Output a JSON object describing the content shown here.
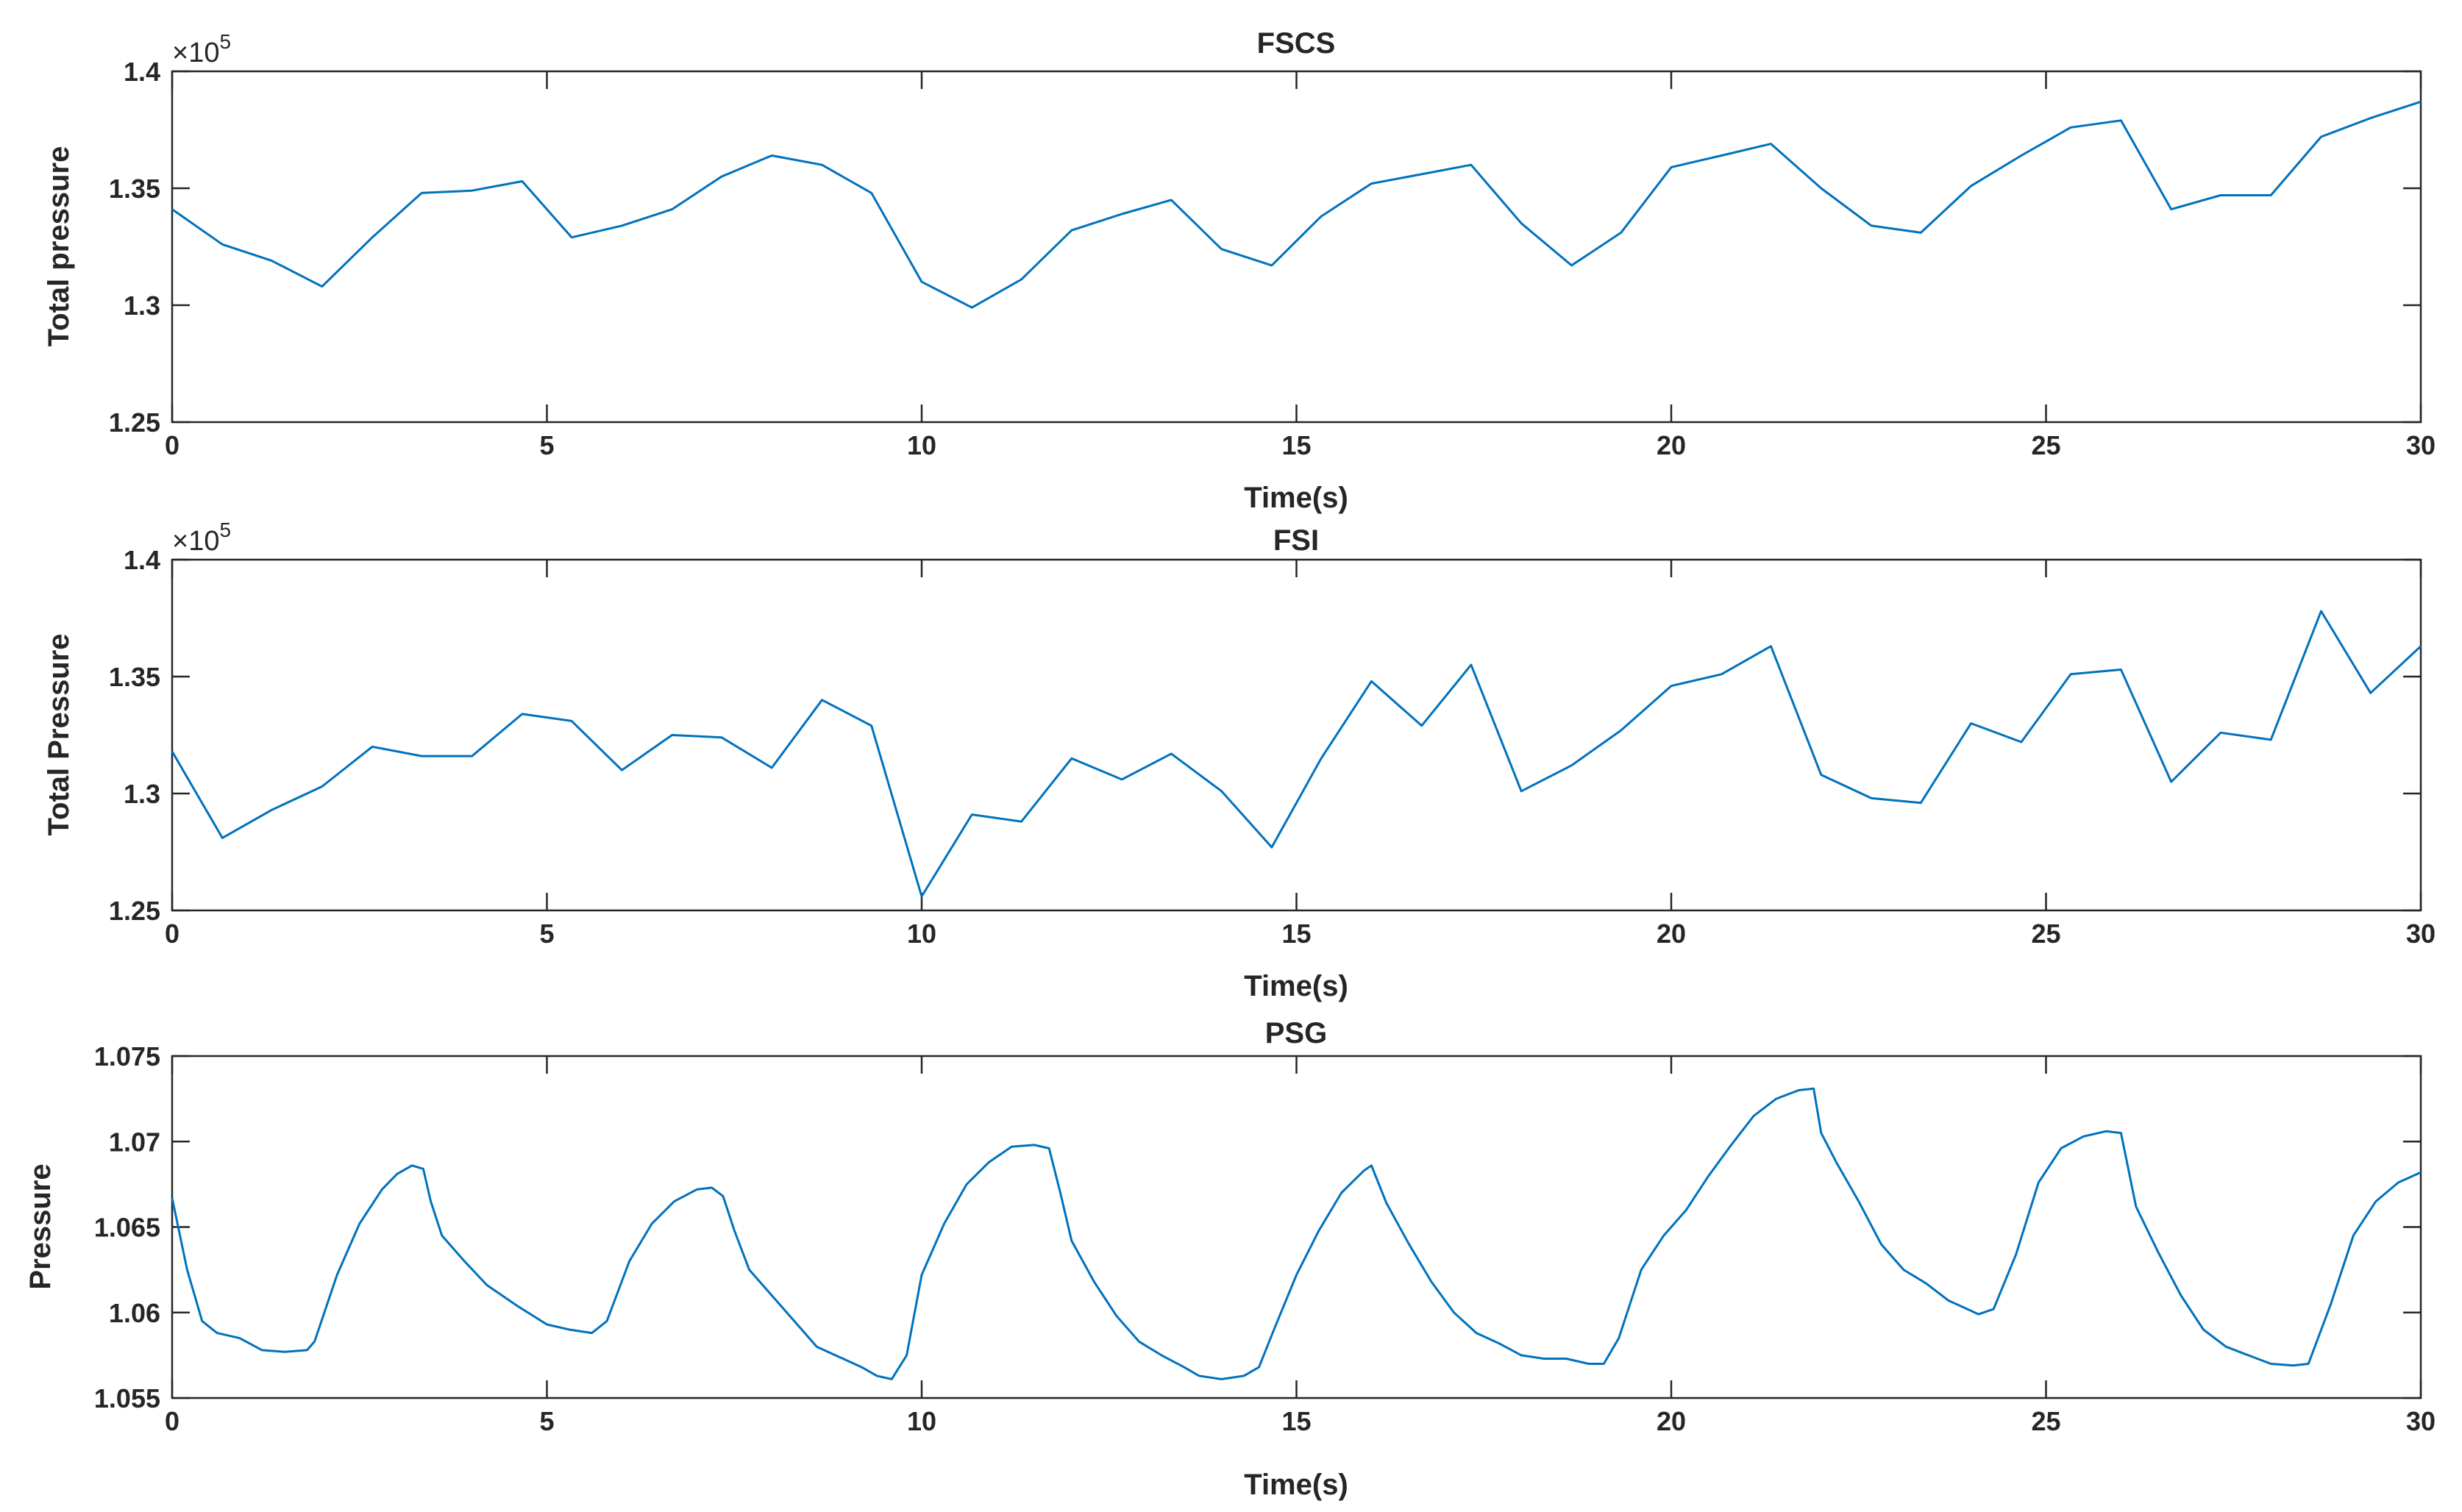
{
  "chart_data": [
    {
      "type": "line",
      "title": "FSCS",
      "xlabel": "Time(s)",
      "ylabel": "Total pressure",
      "y_exponent_base": "×10",
      "y_exponent_power": "5",
      "xlim": [
        0,
        30
      ],
      "ylim": [
        125000,
        140000
      ],
      "xticks": [
        0,
        5,
        10,
        15,
        20,
        25,
        30
      ],
      "xtick_labels": [
        "0",
        "5",
        "10",
        "15",
        "20",
        "25",
        "30"
      ],
      "yticks": [
        125000,
        130000,
        135000,
        140000
      ],
      "ytick_labels": [
        "1.25",
        "1.3",
        "1.35",
        "1.4"
      ],
      "grid": false,
      "series": [
        {
          "color": "#0072bd",
          "x": [
            0,
            0.67,
            1.33,
            2.0,
            2.67,
            3.33,
            4.0,
            4.67,
            5.33,
            6.0,
            6.67,
            7.33,
            8.0,
            8.67,
            9.33,
            10.0,
            10.67,
            11.33,
            12.0,
            12.67,
            13.33,
            14.0,
            14.67,
            15.33,
            16.0,
            16.67,
            17.33,
            18.0,
            18.67,
            19.33,
            20.0,
            20.67,
            21.33,
            22.0,
            22.67,
            23.33,
            24.0,
            24.67,
            25.33,
            26.0,
            26.67,
            27.33,
            28.0,
            28.67,
            29.33,
            30.0
          ],
          "y": [
            134100,
            132600,
            131900,
            130800,
            132900,
            134800,
            134900,
            135300,
            132900,
            133400,
            134100,
            135500,
            136400,
            136000,
            134800,
            131000,
            129900,
            131100,
            133200,
            133900,
            134500,
            132400,
            131700,
            133800,
            135200,
            135600,
            136000,
            133500,
            131700,
            133100,
            135900,
            136400,
            136900,
            135000,
            133400,
            133100,
            135100,
            136400,
            137600,
            137900,
            134100,
            134700,
            134700,
            137200,
            138000,
            138700
          ]
        }
      ]
    },
    {
      "type": "line",
      "title": "FSI",
      "xlabel": "Time(s)",
      "ylabel": "Total Pressure",
      "y_exponent_base": "×10",
      "y_exponent_power": "5",
      "xlim": [
        0,
        30
      ],
      "ylim": [
        125000,
        140000
      ],
      "xticks": [
        0,
        5,
        10,
        15,
        20,
        25,
        30
      ],
      "xtick_labels": [
        "0",
        "5",
        "10",
        "15",
        "20",
        "25",
        "30"
      ],
      "yticks": [
        125000,
        130000,
        135000,
        140000
      ],
      "ytick_labels": [
        "1.25",
        "1.3",
        "1.35",
        "1.4"
      ],
      "grid": false,
      "series": [
        {
          "color": "#0072bd",
          "x": [
            0,
            0.67,
            1.33,
            2.0,
            2.67,
            3.33,
            4.0,
            4.67,
            5.33,
            6.0,
            6.67,
            7.33,
            8.0,
            8.67,
            9.33,
            10.0,
            10.67,
            11.33,
            12.0,
            12.67,
            13.33,
            14.0,
            14.67,
            15.33,
            16.0,
            16.67,
            17.33,
            18.0,
            18.67,
            19.33,
            20.0,
            20.67,
            21.33,
            22.0,
            22.67,
            23.33,
            24.0,
            24.67,
            25.33,
            26.0,
            26.67,
            27.33,
            28.0,
            28.67,
            29.33,
            30.0
          ],
          "y": [
            131800,
            128100,
            129300,
            130300,
            132000,
            131600,
            131600,
            133400,
            133100,
            131000,
            132500,
            132400,
            131100,
            134000,
            132900,
            125600,
            129100,
            128800,
            131500,
            130600,
            131700,
            130100,
            127700,
            131500,
            134800,
            132900,
            135500,
            130100,
            131200,
            132700,
            134600,
            135100,
            136300,
            130800,
            129800,
            129600,
            133000,
            132200,
            135100,
            135300,
            130500,
            132600,
            132300,
            137800,
            134300,
            136300
          ]
        }
      ]
    },
    {
      "type": "line",
      "title": "PSG",
      "xlabel": "Time(s)",
      "ylabel": "Pressure",
      "xlim": [
        0,
        30
      ],
      "ylim": [
        1.055,
        1.075
      ],
      "xticks": [
        0,
        5,
        10,
        15,
        20,
        25,
        30
      ],
      "xtick_labels": [
        "0",
        "5",
        "10",
        "15",
        "20",
        "25",
        "30"
      ],
      "yticks": [
        1.055,
        1.06,
        1.065,
        1.07,
        1.075
      ],
      "ytick_labels": [
        "1.055",
        "1.06",
        "1.065",
        "1.07",
        "1.075"
      ],
      "grid": false,
      "series": [
        {
          "color": "#0072bd",
          "x": [
            0,
            0.2,
            0.4,
            0.6,
            0.9,
            1.2,
            1.5,
            1.8,
            1.9,
            2.2,
            2.5,
            2.8,
            3.0,
            3.2,
            3.35,
            3.45,
            3.6,
            3.9,
            4.2,
            4.6,
            5.0,
            5.3,
            5.6,
            5.8,
            6.1,
            6.4,
            6.7,
            7.0,
            7.2,
            7.35,
            7.5,
            7.7,
            8.0,
            8.3,
            8.6,
            8.9,
            9.2,
            9.4,
            9.6,
            9.8,
            10.0,
            10.3,
            10.6,
            10.9,
            11.2,
            11.5,
            11.7,
            11.85,
            12.0,
            12.3,
            12.6,
            12.9,
            13.2,
            13.5,
            13.7,
            14.0,
            14.3,
            14.5,
            14.7,
            15.0,
            15.3,
            15.6,
            15.9,
            16.0,
            16.2,
            16.5,
            16.8,
            17.1,
            17.4,
            17.7,
            18.0,
            18.3,
            18.6,
            18.9,
            19.1,
            19.3,
            19.6,
            19.9,
            20.2,
            20.5,
            20.8,
            21.1,
            21.4,
            21.7,
            21.9,
            22.0,
            22.2,
            22.5,
            22.8,
            23.1,
            23.4,
            23.7,
            23.9,
            24.1,
            24.3,
            24.6,
            24.9,
            25.2,
            25.5,
            25.8,
            26.0,
            26.2,
            26.5,
            26.8,
            27.1,
            27.4,
            27.7,
            28.0,
            28.3,
            28.5,
            28.8,
            29.1,
            29.4,
            29.7,
            30.0
          ],
          "y": [
            1.0667,
            1.0625,
            1.0595,
            1.0588,
            1.0585,
            1.0578,
            1.0577,
            1.0578,
            1.0583,
            1.0622,
            1.0652,
            1.0672,
            1.0681,
            1.0686,
            1.0684,
            1.0665,
            1.0645,
            1.063,
            1.0616,
            1.0604,
            1.0593,
            1.059,
            1.0588,
            1.0595,
            1.063,
            1.0652,
            1.0665,
            1.0672,
            1.0673,
            1.0668,
            1.0648,
            1.0625,
            1.061,
            1.0595,
            1.058,
            1.0574,
            1.0568,
            1.0563,
            1.0561,
            1.0575,
            1.0622,
            1.0652,
            1.0675,
            1.0688,
            1.0697,
            1.0698,
            1.0696,
            1.067,
            1.0642,
            1.0618,
            1.0598,
            1.0583,
            1.0575,
            1.0568,
            1.0563,
            1.0561,
            1.0563,
            1.0568,
            1.059,
            1.0622,
            1.0648,
            1.067,
            1.0683,
            1.0686,
            1.0664,
            1.064,
            1.0618,
            1.06,
            1.0588,
            1.0582,
            1.0575,
            1.0573,
            1.0573,
            1.057,
            1.057,
            1.0585,
            1.0625,
            1.0645,
            1.066,
            1.068,
            1.0698,
            1.0715,
            1.0725,
            1.073,
            1.0731,
            1.0705,
            1.0688,
            1.0665,
            1.064,
            1.0625,
            1.0617,
            1.0607,
            1.0603,
            1.0599,
            1.0602,
            1.0634,
            1.0676,
            1.0696,
            1.0703,
            1.0706,
            1.0705,
            1.0662,
            1.0635,
            1.061,
            1.059,
            1.058,
            1.0575,
            1.057,
            1.0569,
            1.057,
            1.0605,
            1.0645,
            1.0665,
            1.0676,
            1.0682
          ]
        }
      ]
    }
  ]
}
